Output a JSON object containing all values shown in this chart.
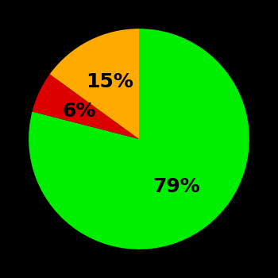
{
  "slices": [
    79,
    6,
    15
  ],
  "colors": [
    "#00ee00",
    "#dd0000",
    "#ffaa00"
  ],
  "labels": [
    "79%",
    "6%",
    "15%"
  ],
  "background_color": "#000000",
  "text_color": "#000000",
  "startangle": 90,
  "label_fontsize": 18,
  "label_fontweight": "bold",
  "label_radii": [
    0.55,
    0.6,
    0.58
  ]
}
